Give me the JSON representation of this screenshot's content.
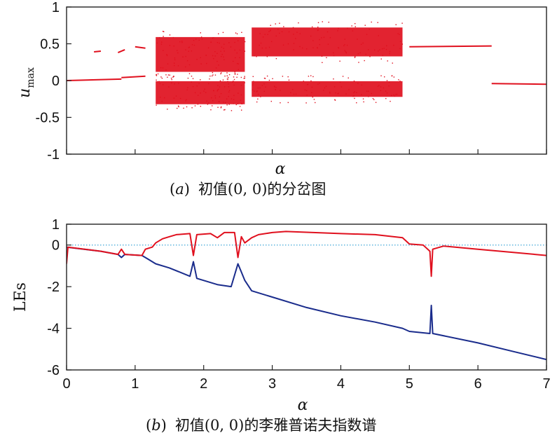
{
  "chart_data": [
    {
      "type": "scatter",
      "ylabel_main": "u",
      "ylabel_sub": "max",
      "xlabel": "α",
      "caption_tag": "a",
      "caption_text": "初值(0, 0)的分岔图",
      "ylim": [
        -1,
        1
      ],
      "y_ticks": [
        1,
        0.5,
        0,
        -0.5,
        -1
      ],
      "y_tick_labels": [
        "1",
        "0.5",
        "0",
        "-0.5",
        "-1"
      ],
      "xlim": [
        0,
        7
      ],
      "x_tick_labels_shown": false,
      "grid": false,
      "series_color": "#e0101e",
      "periodic_branches": [
        {
          "x": [
            0.0,
            0.8
          ],
          "y": [
            0.0,
            0.02
          ]
        },
        {
          "x": [
            0.8,
            1.15
          ],
          "y": [
            0.04,
            0.06
          ]
        },
        {
          "x": [
            0.4,
            0.5
          ],
          "y": [
            0.39,
            0.4
          ]
        },
        {
          "x": [
            0.75,
            0.85
          ],
          "y": [
            0.38,
            0.42
          ]
        },
        {
          "x": [
            1.0,
            1.15
          ],
          "y": [
            0.46,
            0.44
          ]
        },
        {
          "x": [
            5.0,
            6.2
          ],
          "y": [
            0.46,
            0.47
          ]
        },
        {
          "x": [
            6.2,
            7.0
          ],
          "y": [
            -0.04,
            -0.05
          ]
        }
      ],
      "chaotic_bands": [
        {
          "x": [
            1.3,
            2.6
          ],
          "y": [
            0.09,
            0.62
          ]
        },
        {
          "x": [
            1.3,
            2.6
          ],
          "y": [
            -0.35,
            0.02
          ]
        },
        {
          "x": [
            2.7,
            4.9
          ],
          "y": [
            0.3,
            0.75
          ]
        },
        {
          "x": [
            2.7,
            4.9
          ],
          "y": [
            -0.25,
            0.02
          ]
        }
      ]
    },
    {
      "type": "line",
      "ylabel": "LEs",
      "xlabel": "α",
      "caption_tag": "b",
      "caption_text": "初值(0, 0)的李雅普诺夫指数谱",
      "xlim": [
        0,
        7
      ],
      "ylim": [
        -6,
        1
      ],
      "x_ticks": [
        0,
        1,
        2,
        3,
        4,
        5,
        6,
        7
      ],
      "x_tick_labels": [
        "0",
        "1",
        "2",
        "3",
        "4",
        "5",
        "6",
        "7"
      ],
      "y_ticks": [
        1,
        0,
        -2,
        -4,
        -6
      ],
      "y_tick_labels": [
        "1",
        "0",
        "-2",
        "-4",
        "-6"
      ],
      "zero_line": {
        "y": 0,
        "color": "#40a8d8",
        "style": "dotted"
      },
      "series": [
        {
          "color": "#e0101e",
          "points": [
            [
              0,
              -0.9
            ],
            [
              0.02,
              -0.1
            ],
            [
              0.5,
              -0.3
            ],
            [
              0.75,
              -0.45
            ],
            [
              0.8,
              -0.2
            ],
            [
              0.85,
              -0.45
            ],
            [
              1.1,
              -0.5
            ],
            [
              1.15,
              -0.2
            ],
            [
              1.25,
              -0.1
            ],
            [
              1.3,
              0.1
            ],
            [
              1.4,
              0.3
            ],
            [
              1.5,
              0.4
            ],
            [
              1.6,
              0.5
            ],
            [
              1.8,
              0.55
            ],
            [
              1.85,
              -0.5
            ],
            [
              1.9,
              0.5
            ],
            [
              2.1,
              0.55
            ],
            [
              2.2,
              0.35
            ],
            [
              2.3,
              0.6
            ],
            [
              2.45,
              0.6
            ],
            [
              2.5,
              -0.6
            ],
            [
              2.55,
              0.4
            ],
            [
              2.6,
              0.1
            ],
            [
              2.7,
              0.35
            ],
            [
              2.8,
              0.5
            ],
            [
              3.0,
              0.6
            ],
            [
              3.2,
              0.65
            ],
            [
              3.6,
              0.6
            ],
            [
              4.0,
              0.55
            ],
            [
              4.5,
              0.5
            ],
            [
              4.9,
              0.35
            ],
            [
              5.0,
              0.05
            ],
            [
              5.2,
              0.0
            ],
            [
              5.3,
              -0.3
            ],
            [
              5.32,
              -1.5
            ],
            [
              5.34,
              -0.2
            ],
            [
              5.5,
              -0.05
            ],
            [
              6.0,
              -0.2
            ],
            [
              6.5,
              -0.35
            ],
            [
              7.0,
              -0.5
            ]
          ]
        },
        {
          "color": "#1a2c8c",
          "points": [
            [
              0,
              -0.1
            ],
            [
              0.5,
              -0.3
            ],
            [
              0.75,
              -0.45
            ],
            [
              0.8,
              -0.6
            ],
            [
              0.85,
              -0.45
            ],
            [
              1.1,
              -0.5
            ],
            [
              1.2,
              -0.7
            ],
            [
              1.3,
              -0.9
            ],
            [
              1.5,
              -1.1
            ],
            [
              1.8,
              -1.5
            ],
            [
              1.85,
              -0.8
            ],
            [
              1.9,
              -1.6
            ],
            [
              2.2,
              -1.9
            ],
            [
              2.4,
              -2.0
            ],
            [
              2.5,
              -0.9
            ],
            [
              2.55,
              -1.3
            ],
            [
              2.6,
              -1.7
            ],
            [
              2.7,
              -2.2
            ],
            [
              3.0,
              -2.5
            ],
            [
              3.5,
              -3.0
            ],
            [
              4.0,
              -3.4
            ],
            [
              4.5,
              -3.7
            ],
            [
              4.9,
              -4.0
            ],
            [
              5.0,
              -4.15
            ],
            [
              5.3,
              -4.25
            ],
            [
              5.32,
              -2.9
            ],
            [
              5.34,
              -4.25
            ],
            [
              6.0,
              -4.7
            ],
            [
              6.5,
              -5.1
            ],
            [
              7.0,
              -5.5
            ]
          ]
        }
      ]
    }
  ]
}
